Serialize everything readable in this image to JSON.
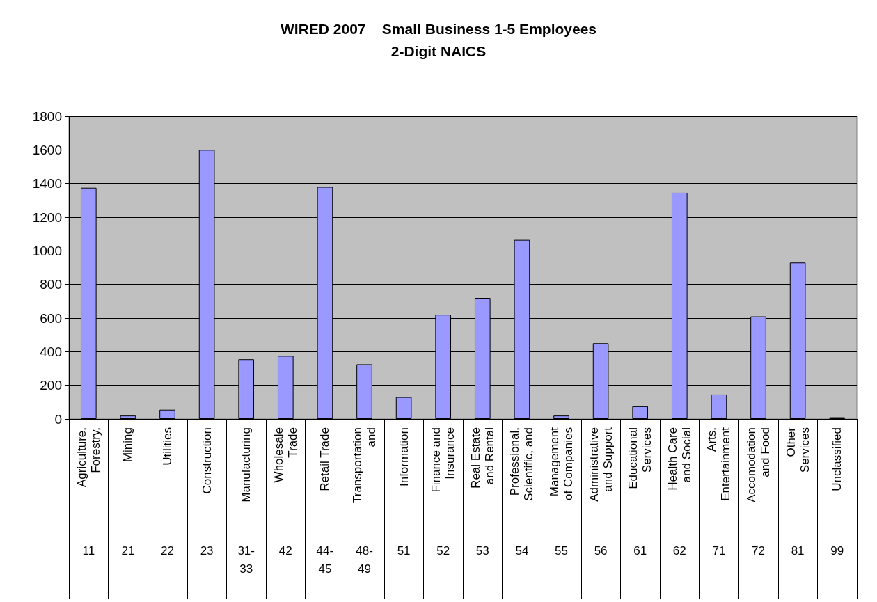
{
  "chart_data": {
    "type": "bar",
    "title": "WIRED 2007    Small Business 1-5 Employees\n2-Digit NAICS",
    "categories": [
      "Agriculture,\nForestry,\n\n11",
      "Mining\n\n21",
      "Utilities\n\n22",
      "Construction\n\n23",
      "Manufacturing\n\n31-\n33",
      "Wholesale\nTrade\n\n42",
      "Retail Trade\n\n44-\n45",
      "Transportation\nand\n\n48-\n49",
      "Information\n\n51",
      "Finance and\nInsurance\n\n52",
      "Real Estate\nand Rental\n\n53",
      "Professional,\nScientific, and\n\n54",
      "Management\nof Companies\n\n55",
      "Administrative\nand Support\n\n56",
      "Educational\nServices\n\n61",
      "Health Care\nand Social\n\n62",
      "Arts,\nEntertainment\n\n71",
      "Accomodation\nand Food\n\n72",
      "Other\nServices\n\n81",
      "Unclassified\n\n99"
    ],
    "values": [
      1375,
      20,
      55,
      1600,
      355,
      375,
      1380,
      325,
      130,
      620,
      720,
      1065,
      20,
      450,
      75,
      1345,
      145,
      610,
      930,
      10
    ],
    "color": "#9999ff",
    "ylim": [
      0,
      1800
    ],
    "yticks": [
      0,
      200,
      400,
      600,
      800,
      1000,
      1200,
      1400,
      1600,
      1800
    ],
    "grid": "y"
  }
}
